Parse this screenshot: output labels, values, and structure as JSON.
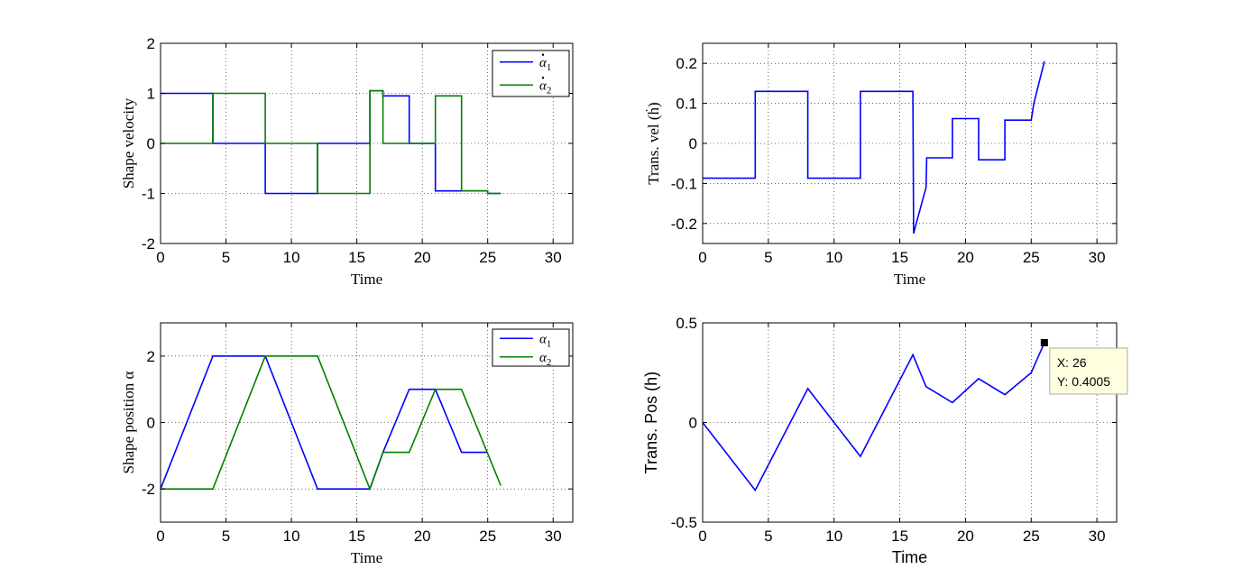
{
  "chart_data": [
    {
      "type": "line",
      "ylabel": "Shape velocity",
      "xlabel": "Time",
      "xlim": [
        0,
        31.5
      ],
      "ylim": [
        -2,
        2
      ],
      "xticks": [
        0,
        5,
        10,
        15,
        20,
        25,
        30
      ],
      "yticks": [
        -2,
        -1,
        0,
        1,
        2
      ],
      "xtick_labels": [
        "0",
        "5",
        "10",
        "15",
        "20",
        "25",
        "30"
      ],
      "ytick_labels": [
        "-2",
        "-1",
        "0",
        "1",
        "2"
      ],
      "grid": true,
      "legend_position": "top-right",
      "series": [
        {
          "name": "α̇₁",
          "legend_base": "α",
          "legend_sub": "1",
          "legend_dot": true,
          "color": "#0000ff",
          "x": [
            0,
            4,
            4,
            8,
            8,
            12,
            12,
            16,
            16,
            17,
            17,
            19,
            19,
            21,
            21,
            25,
            25,
            26
          ],
          "y": [
            1,
            1,
            0,
            0,
            -1,
            -1,
            0,
            0,
            1.05,
            1.05,
            0.95,
            0.95,
            0,
            0,
            -0.95,
            -0.95,
            -1,
            -1
          ]
        },
        {
          "name": "α̇₂",
          "legend_base": "α",
          "legend_sub": "2",
          "legend_dot": true,
          "color": "#008000",
          "x": [
            0,
            4,
            4,
            8,
            8,
            12,
            12,
            16,
            16,
            17,
            17,
            21,
            21,
            23,
            23,
            25,
            25,
            26
          ],
          "y": [
            0,
            0,
            1,
            1,
            0,
            0,
            -1,
            -1,
            1.05,
            1.05,
            0,
            0,
            0.95,
            0.95,
            -0.95,
            -0.95,
            -1,
            -1
          ]
        }
      ]
    },
    {
      "type": "line",
      "ylabel": "Trans. vel (ḣ)",
      "xlabel": "Time",
      "xlim": [
        0,
        31.5
      ],
      "ylim": [
        -0.25,
        0.25
      ],
      "xticks": [
        0,
        5,
        10,
        15,
        20,
        25,
        30
      ],
      "yticks": [
        -0.2,
        -0.1,
        0,
        0.1,
        0.2
      ],
      "xtick_labels": [
        "0",
        "5",
        "10",
        "15",
        "20",
        "25",
        "30"
      ],
      "ytick_labels": [
        "-0.2",
        "-0.1",
        "0",
        "0.1",
        "0.2"
      ],
      "grid": true,
      "series": [
        {
          "name": "ḣ",
          "color": "#0000ff",
          "x": [
            0,
            4,
            4,
            8,
            8,
            12,
            12,
            16,
            16.05,
            16.25,
            17,
            17.05,
            19,
            19,
            21,
            21,
            23,
            23,
            25,
            25.2,
            26
          ],
          "y": [
            -0.087,
            -0.087,
            0.13,
            0.13,
            -0.087,
            -0.087,
            0.13,
            0.13,
            -0.225,
            -0.2,
            -0.11,
            -0.036,
            -0.036,
            0.062,
            0.062,
            -0.041,
            -0.041,
            0.058,
            0.058,
            0.1,
            0.205
          ]
        }
      ]
    },
    {
      "type": "line",
      "ylabel": "Shape position α",
      "xlabel": "Time",
      "xlim": [
        0,
        31.5
      ],
      "ylim": [
        -3,
        3
      ],
      "xticks": [
        0,
        5,
        10,
        15,
        20,
        25,
        30
      ],
      "yticks": [
        -2,
        0,
        2
      ],
      "xtick_labels": [
        "0",
        "5",
        "10",
        "15",
        "20",
        "25",
        "30"
      ],
      "ytick_labels": [
        "-2",
        "0",
        "2"
      ],
      "grid": true,
      "legend_position": "top-right",
      "series": [
        {
          "name": "α₁",
          "legend_base": "α",
          "legend_sub": "1",
          "legend_dot": false,
          "color": "#0000ff",
          "x": [
            0,
            4,
            8,
            12,
            16,
            17,
            19,
            21,
            23,
            25
          ],
          "y": [
            -2,
            2,
            2,
            -2,
            -2,
            -0.9,
            1,
            1,
            -0.9,
            -0.9
          ]
        },
        {
          "name": "α₂",
          "legend_base": "α",
          "legend_sub": "2",
          "legend_dot": false,
          "color": "#008000",
          "x": [
            0,
            4,
            8,
            12,
            16,
            17,
            19,
            21,
            23,
            26
          ],
          "y": [
            -2,
            -2,
            2,
            2,
            -2,
            -0.9,
            -0.9,
            1,
            1,
            -1.9
          ]
        }
      ]
    },
    {
      "type": "line",
      "ylabel": "Trans. Pos (h)",
      "xlabel": "Time",
      "xlim": [
        0,
        31.5
      ],
      "ylim": [
        -0.5,
        0.5
      ],
      "xticks": [
        0,
        5,
        10,
        15,
        20,
        25,
        30
      ],
      "yticks": [
        -0.5,
        0,
        0.5
      ],
      "xtick_labels": [
        "0",
        "5",
        "10",
        "15",
        "20",
        "25",
        "30"
      ],
      "ytick_labels": [
        "-0.5",
        "0",
        "0.5"
      ],
      "grid": true,
      "series": [
        {
          "name": "h",
          "color": "#0000ff",
          "x": [
            0,
            4,
            8,
            12,
            16,
            17,
            19,
            21,
            23,
            25,
            26
          ],
          "y": [
            0,
            -0.34,
            0.17,
            -0.17,
            0.34,
            0.18,
            0.1,
            0.22,
            0.14,
            0.25,
            0.4005
          ]
        }
      ],
      "datatip": {
        "x": 26,
        "y": 0.4005,
        "x_text": "X: 26",
        "y_text": "Y: 0.4005"
      }
    }
  ]
}
